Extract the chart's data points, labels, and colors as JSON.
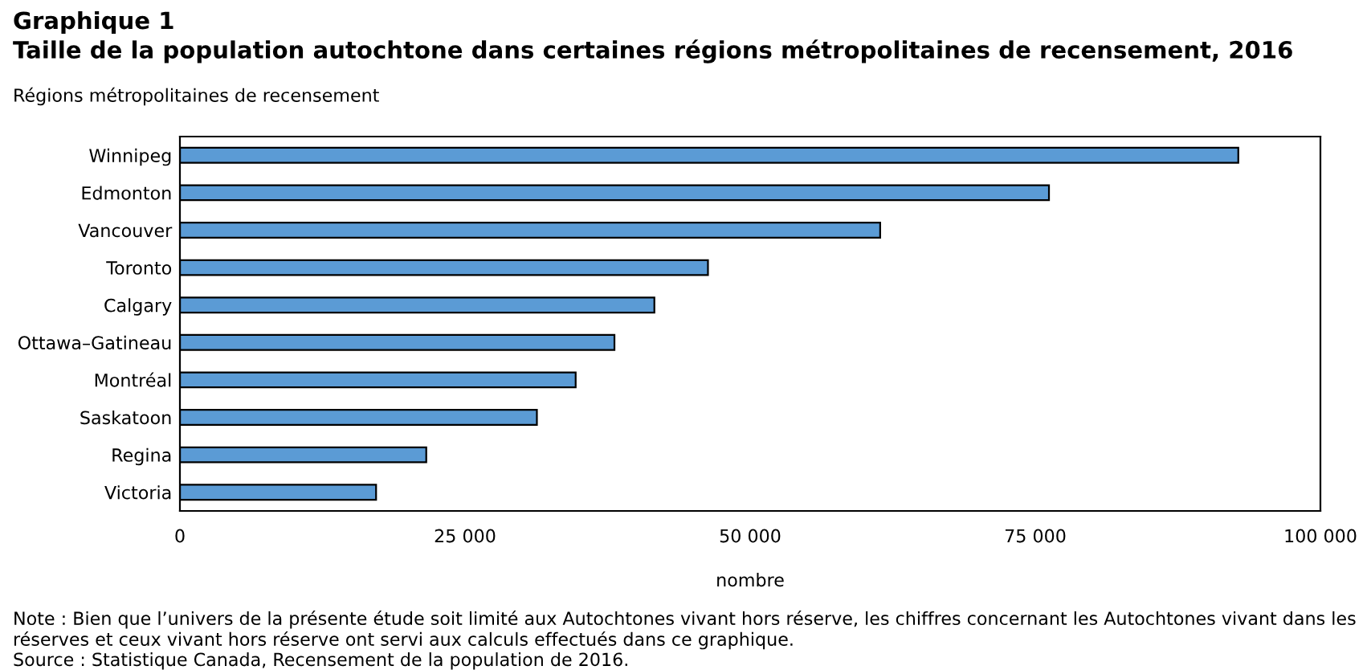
{
  "chart_data": {
    "type": "bar",
    "orientation": "horizontal",
    "title": "Graphique 1",
    "subtitle": "Taille de la population autochtone dans certaines régions métropolitaines de recensement, 2016",
    "ylabel": "Régions métropolitaines de recensement",
    "xlabel": "nombre",
    "categories": [
      "Winnipeg",
      "Edmonton",
      "Vancouver",
      "Toronto",
      "Calgary",
      "Ottawa–Gatineau",
      "Montréal",
      "Saskatoon",
      "Regina",
      "Victoria"
    ],
    "values": [
      92800,
      76200,
      61400,
      46300,
      41600,
      38100,
      34700,
      31300,
      21600,
      17200
    ],
    "color": "#5b9bd5",
    "xlim": [
      0,
      100000
    ],
    "xticks": [
      0,
      {
        "value": 25000,
        "label": "25 000"
      },
      {
        "value": 50000,
        "label": "50 000"
      },
      {
        "value": 75000,
        "label": "75 000"
      },
      {
        "value": 100000,
        "label": "100 000"
      }
    ],
    "grid": false,
    "annotations": [
      "Note : Bien que l’univers de la présente étude soit limité aux Autochtones vivant hors réserve, les chiffres concernant les Autochtones vivant dans les réserves et ceux vivant hors réserve ont servi aux calculs effectués dans ce graphique.",
      "Source : Statistique Canada, Recensement de la population de 2016."
    ]
  }
}
